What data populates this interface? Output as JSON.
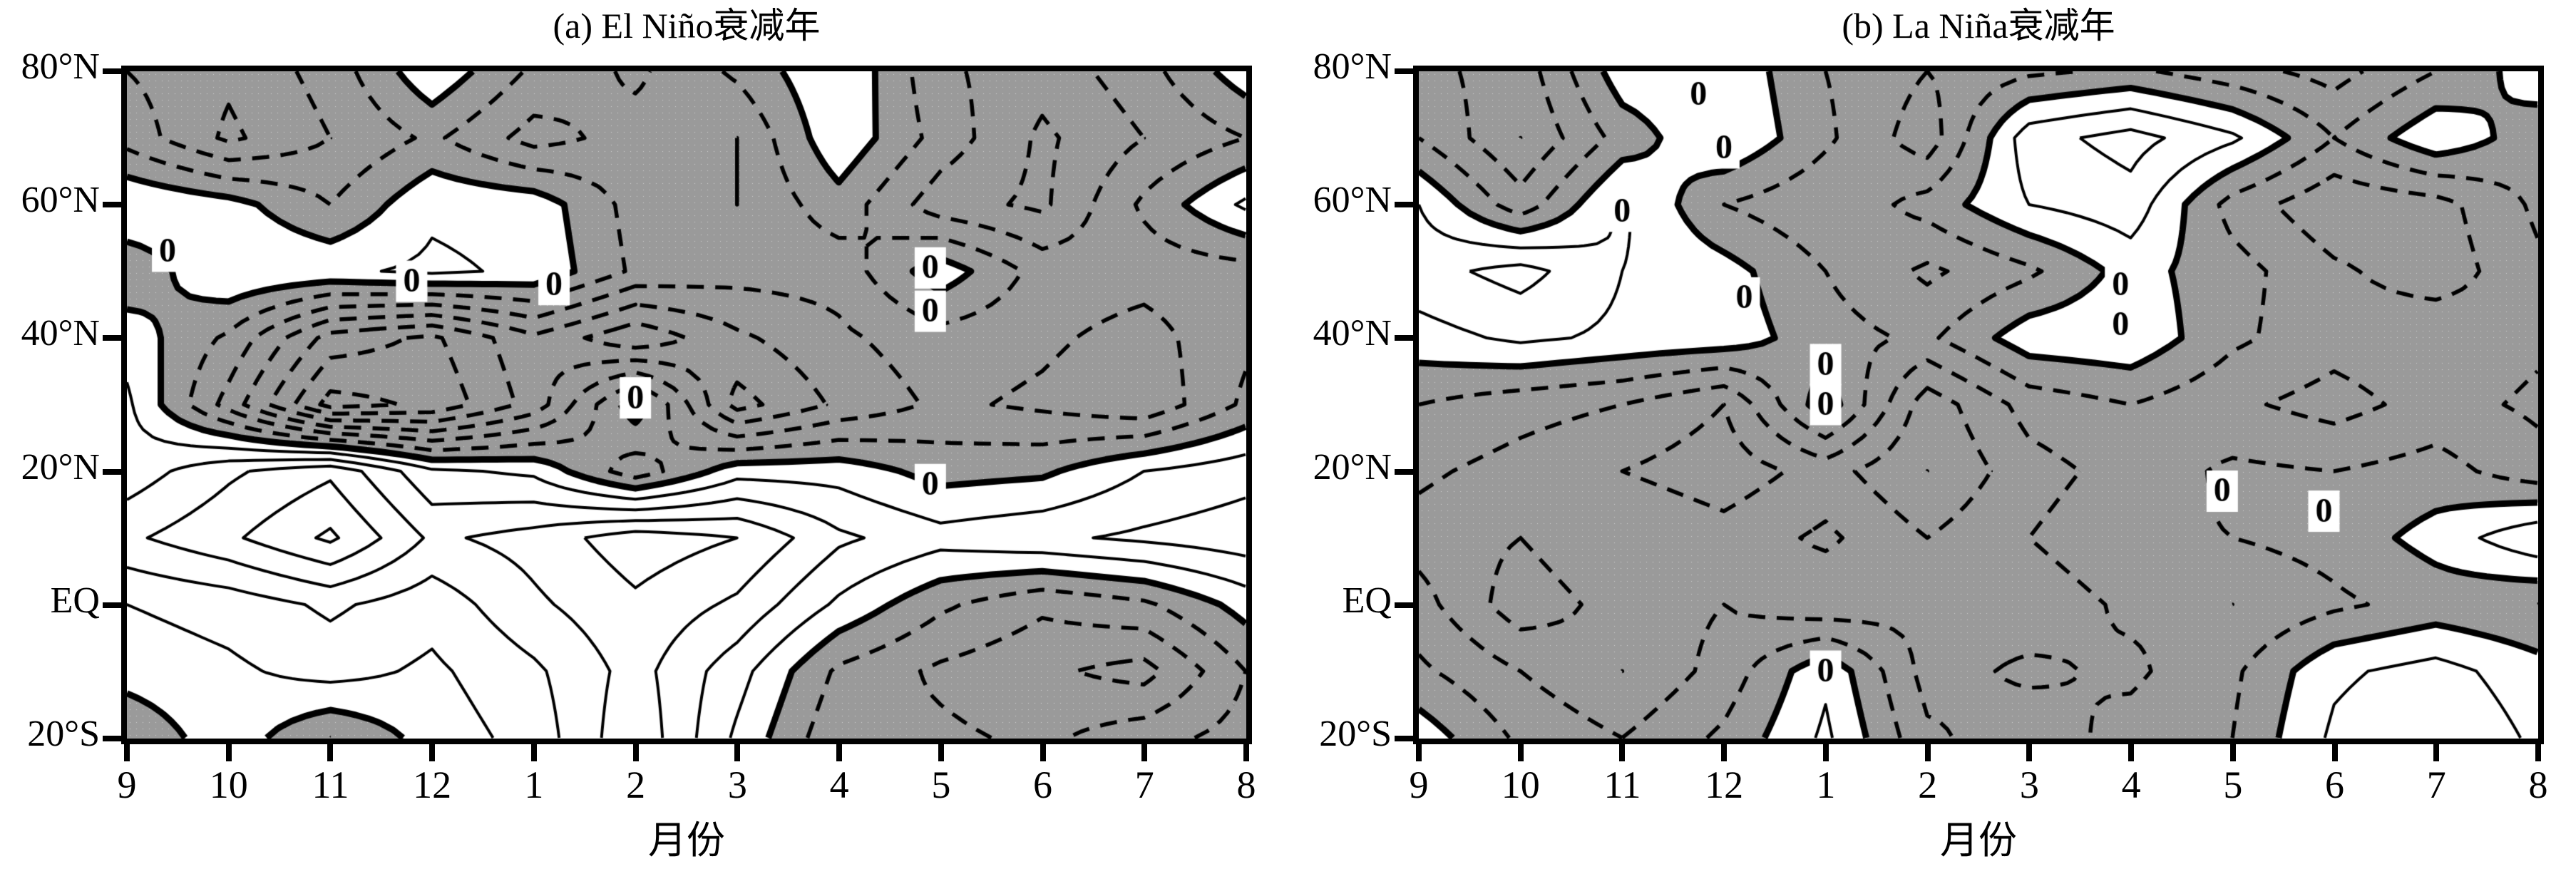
{
  "page": {
    "background": "#ffffff"
  },
  "colors": {
    "contour_line": "#000000",
    "shading_gray": "#9a9a9a",
    "stipple_dot": "#d4d4d4",
    "text": "#000000",
    "background": "#ffffff"
  },
  "chart_data": [
    {
      "type": "contour",
      "panel_label": "a",
      "title": "(a) El Niño衰减年",
      "xlabel": "月份",
      "x_tick_labels": [
        "9",
        "10",
        "11",
        "12",
        "1",
        "2",
        "3",
        "4",
        "5",
        "6",
        "7",
        "8"
      ],
      "y_tick_labels": [
        "80°N",
        "60°N",
        "40°N",
        "20°N",
        "EQ",
        "20°S"
      ],
      "y_range_deg": [
        -20,
        80
      ],
      "months": [
        9,
        10,
        11,
        12,
        1,
        2,
        3,
        4,
        5,
        6,
        7,
        8
      ],
      "lat_rows_deg": [
        80,
        70,
        60,
        50,
        40,
        30,
        20,
        10,
        0,
        -10,
        -20
      ],
      "contour_interval": 0.5,
      "value_units": "not labeled in figure",
      "zero_contour_style": "thick solid",
      "negative_contour_style": "dashed",
      "positive_contour_style": "thin solid",
      "shaded_where": "value < 0 (gray stipple)",
      "values": [
        [
          -1.0,
          -1.4,
          -0.8,
          0.4,
          -0.6,
          -1.1,
          -0.4,
          0.5,
          -0.9,
          -1.3,
          -0.7,
          0.3
        ],
        [
          -0.7,
          -1.6,
          -1.0,
          -0.4,
          -1.2,
          -0.8,
          -1.0,
          0.4,
          -0.7,
          -1.6,
          -1.0,
          -0.5
        ],
        [
          0.5,
          0.2,
          -0.5,
          0.4,
          0.3,
          -0.7,
          -1.0,
          -0.2,
          -1.3,
          -1.6,
          -0.4,
          0.6
        ],
        [
          -0.4,
          0.5,
          0.4,
          0.6,
          0.4,
          -0.6,
          -0.8,
          -0.8,
          0.3,
          -0.7,
          -0.8,
          -0.7
        ],
        [
          0.3,
          -0.6,
          -2.2,
          -2.6,
          -1.6,
          -2.4,
          -1.6,
          -1.1,
          -0.7,
          -0.9,
          -1.2,
          -0.6
        ],
        [
          0.6,
          -1.2,
          -3.2,
          -2.9,
          -1.8,
          0.3,
          -2.2,
          -1.4,
          -0.9,
          -1.1,
          -1.4,
          -0.4
        ],
        [
          0.7,
          1.4,
          1.9,
          0.6,
          0.4,
          -0.8,
          0.3,
          0.3,
          -0.2,
          -0.1,
          0.5,
          0.8
        ],
        [
          1.4,
          1.9,
          2.6,
          1.4,
          1.7,
          2.3,
          2.0,
          1.1,
          0.7,
          0.9,
          1.1,
          1.3
        ],
        [
          0.5,
          0.7,
          1.1,
          0.7,
          1.4,
          1.9,
          1.4,
          0.4,
          -0.4,
          -0.9,
          -0.6,
          0.2
        ],
        [
          0.2,
          0.4,
          0.7,
          0.4,
          0.9,
          1.7,
          0.7,
          -0.6,
          -1.1,
          -1.4,
          -1.7,
          -0.5
        ],
        [
          -0.4,
          0.3,
          -0.5,
          0.2,
          0.7,
          1.9,
          0.4,
          -0.9,
          -0.9,
          -1.1,
          -0.7,
          -0.3
        ]
      ],
      "zero_labels": {
        "text": "0",
        "positions_month_lat": [
          [
            9.4,
            53
          ],
          [
            11.8,
            48.5
          ],
          [
            13.2,
            48
          ],
          [
            16.9,
            50.5
          ],
          [
            16.9,
            44
          ],
          [
            14.0,
            31
          ],
          [
            16.9,
            18
          ]
        ]
      }
    },
    {
      "type": "contour",
      "panel_label": "b",
      "title": "(b) La Niña衰减年",
      "xlabel": "月份",
      "x_tick_labels": [
        "9",
        "10",
        "11",
        "12",
        "1",
        "2",
        "3",
        "4",
        "5",
        "6",
        "7",
        "8"
      ],
      "y_tick_labels": [
        "80°N",
        "60°N",
        "40°N",
        "20°N",
        "EQ",
        "20°S"
      ],
      "y_range_deg": [
        -20,
        80
      ],
      "months": [
        9,
        10,
        11,
        12,
        1,
        2,
        3,
        4,
        5,
        6,
        7,
        8
      ],
      "lat_rows_deg": [
        80,
        70,
        60,
        50,
        40,
        30,
        20,
        10,
        0,
        -10,
        -20
      ],
      "contour_interval": 0.5,
      "value_units": "not labeled in figure",
      "zero_contour_style": "thick solid",
      "negative_contour_style": "dashed",
      "positive_contour_style": "thin solid",
      "shaded_where": "value < 0 (gray stipple)",
      "values": [
        [
          -0.8,
          -1.3,
          0.3,
          0.4,
          -0.5,
          -1.0,
          -0.6,
          -0.4,
          -0.8,
          -1.2,
          -0.5,
          0.3
        ],
        [
          -0.5,
          -1.5,
          -0.3,
          0.5,
          -0.4,
          -1.3,
          0.8,
          1.2,
          0.6,
          -0.5,
          0.4,
          -0.3
        ],
        [
          0.5,
          -0.8,
          0.6,
          -0.5,
          -0.9,
          -0.3,
          0.5,
          0.8,
          -0.7,
          -1.4,
          -1.2,
          -0.4
        ],
        [
          0.8,
          1.2,
          0.5,
          0.2,
          -0.5,
          -1.1,
          -0.6,
          0.2,
          -0.3,
          -0.9,
          -1.3,
          -0.6
        ],
        [
          0.3,
          0.6,
          0.4,
          0.3,
          -0.3,
          -0.6,
          0.3,
          0.4,
          -0.4,
          -0.8,
          -0.6,
          -0.9
        ],
        [
          -0.5,
          -0.8,
          -1.0,
          -1.5,
          0.3,
          -1.8,
          -0.8,
          -0.5,
          -0.9,
          -1.2,
          -0.8,
          -1.1
        ],
        [
          -0.9,
          -1.2,
          -1.5,
          -1.8,
          -1.3,
          -2.0,
          -1.2,
          -0.8,
          -0.4,
          -0.5,
          -0.3,
          -0.8
        ],
        [
          -1.2,
          -1.5,
          -1.0,
          -1.3,
          -0.9,
          -1.5,
          -1.0,
          -0.6,
          -0.5,
          -0.3,
          0.2,
          0.9
        ],
        [
          -0.8,
          -1.8,
          -1.3,
          -1.0,
          -1.4,
          -1.1,
          -1.3,
          -0.9,
          -1.0,
          -0.6,
          -0.3,
          -0.5
        ],
        [
          -0.4,
          -1.0,
          -1.5,
          -0.8,
          0.4,
          -1.2,
          -0.9,
          -1.1,
          -0.6,
          0.4,
          0.7,
          0.2
        ],
        [
          0.3,
          -0.6,
          -1.0,
          -0.4,
          0.6,
          -0.9,
          -1.3,
          -0.8,
          -0.5,
          0.6,
          1.0,
          0.4
        ]
      ],
      "zero_labels": {
        "text": "0",
        "positions_month_lat": [
          [
            11.75,
            76.5
          ],
          [
            12.0,
            68.5
          ],
          [
            11.0,
            59
          ],
          [
            12.2,
            46
          ],
          [
            13.0,
            36
          ],
          [
            15.9,
            48
          ],
          [
            15.9,
            42
          ],
          [
            13.0,
            30
          ],
          [
            16.9,
            17
          ],
          [
            17.9,
            14
          ],
          [
            13.0,
            -10
          ]
        ]
      }
    }
  ]
}
